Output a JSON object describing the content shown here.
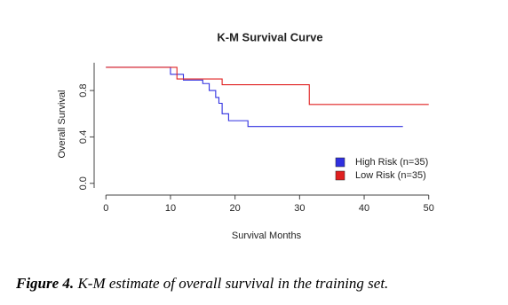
{
  "chart_data": {
    "type": "line",
    "title": "K-M Survival Curve",
    "x_label": "Survival Months",
    "y_label": "Overall Survival",
    "series": [
      {
        "name": "High Risk (n=35)",
        "color": "#3030e0",
        "x": [
          0,
          10,
          10,
          12,
          12,
          15,
          15,
          16,
          16,
          17,
          17,
          17.5,
          17.5,
          18,
          18,
          19,
          19,
          22,
          22,
          46
        ],
        "values": [
          1,
          1,
          0.94,
          0.94,
          0.89,
          0.89,
          0.86,
          0.86,
          0.8,
          0.8,
          0.74,
          0.74,
          0.69,
          0.69,
          0.6,
          0.6,
          0.54,
          0.54,
          0.49,
          0.49
        ]
      },
      {
        "name": "Low Risk (n=35)",
        "color": "#e02020",
        "x": [
          0,
          11,
          11,
          18,
          18,
          31.5,
          31.5,
          50
        ],
        "values": [
          1,
          1,
          0.9,
          0.9,
          0.85,
          0.85,
          0.68,
          0.68
        ]
      }
    ],
    "xlim": [
      -1,
      51
    ],
    "ylim": [
      -0.04,
      1.04
    ],
    "xticks": [
      0,
      10,
      20,
      30,
      40,
      50
    ],
    "yticks": [
      {
        "value": 0,
        "label": "0.0"
      },
      0.4,
      0.8
    ],
    "legend": "bottom-right",
    "caption_label": "Figure 4.",
    "caption_text": "K-M estimate of overall survival in the training set."
  }
}
